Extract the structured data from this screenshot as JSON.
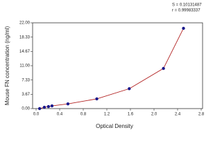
{
  "chart_data": {
    "type": "line",
    "ylabel": "Mouse FN concentration (ng/ml)",
    "xlabel": "Optical Density",
    "annotations": [
      "S = 0.10131487",
      "r = 0.99983337"
    ],
    "series": [
      {
        "color": "#1a1a8c",
        "line_color": "#b22222",
        "x": [
          0.06,
          0.14,
          0.21,
          0.27,
          0.54,
          1.03,
          1.58,
          2.16,
          2.5
        ],
        "values": [
          0,
          0.35,
          0.53,
          0.7,
          1.2,
          2.5,
          5.1,
          10.3,
          20.6
        ]
      }
    ],
    "xlim": [
      0,
      2.8
    ],
    "xticks": [
      {
        "value": 0,
        "label": "0.0"
      },
      0.4,
      0.8,
      1.2,
      1.6,
      {
        "value": 2,
        "label": "2.0"
      },
      2.4,
      2.8
    ],
    "ylim": [
      0,
      22
    ],
    "yticks": [
      {
        "value": 0,
        "label": "0.00"
      },
      {
        "value": 3.67,
        "label": "3.67"
      },
      {
        "value": 7.33,
        "label": "7.33"
      },
      {
        "value": 11,
        "label": "11.00"
      },
      {
        "value": 14.67,
        "label": "14.67"
      },
      {
        "value": 18.33,
        "label": "18.33"
      },
      {
        "value": 22,
        "label": "22.00"
      }
    ]
  }
}
